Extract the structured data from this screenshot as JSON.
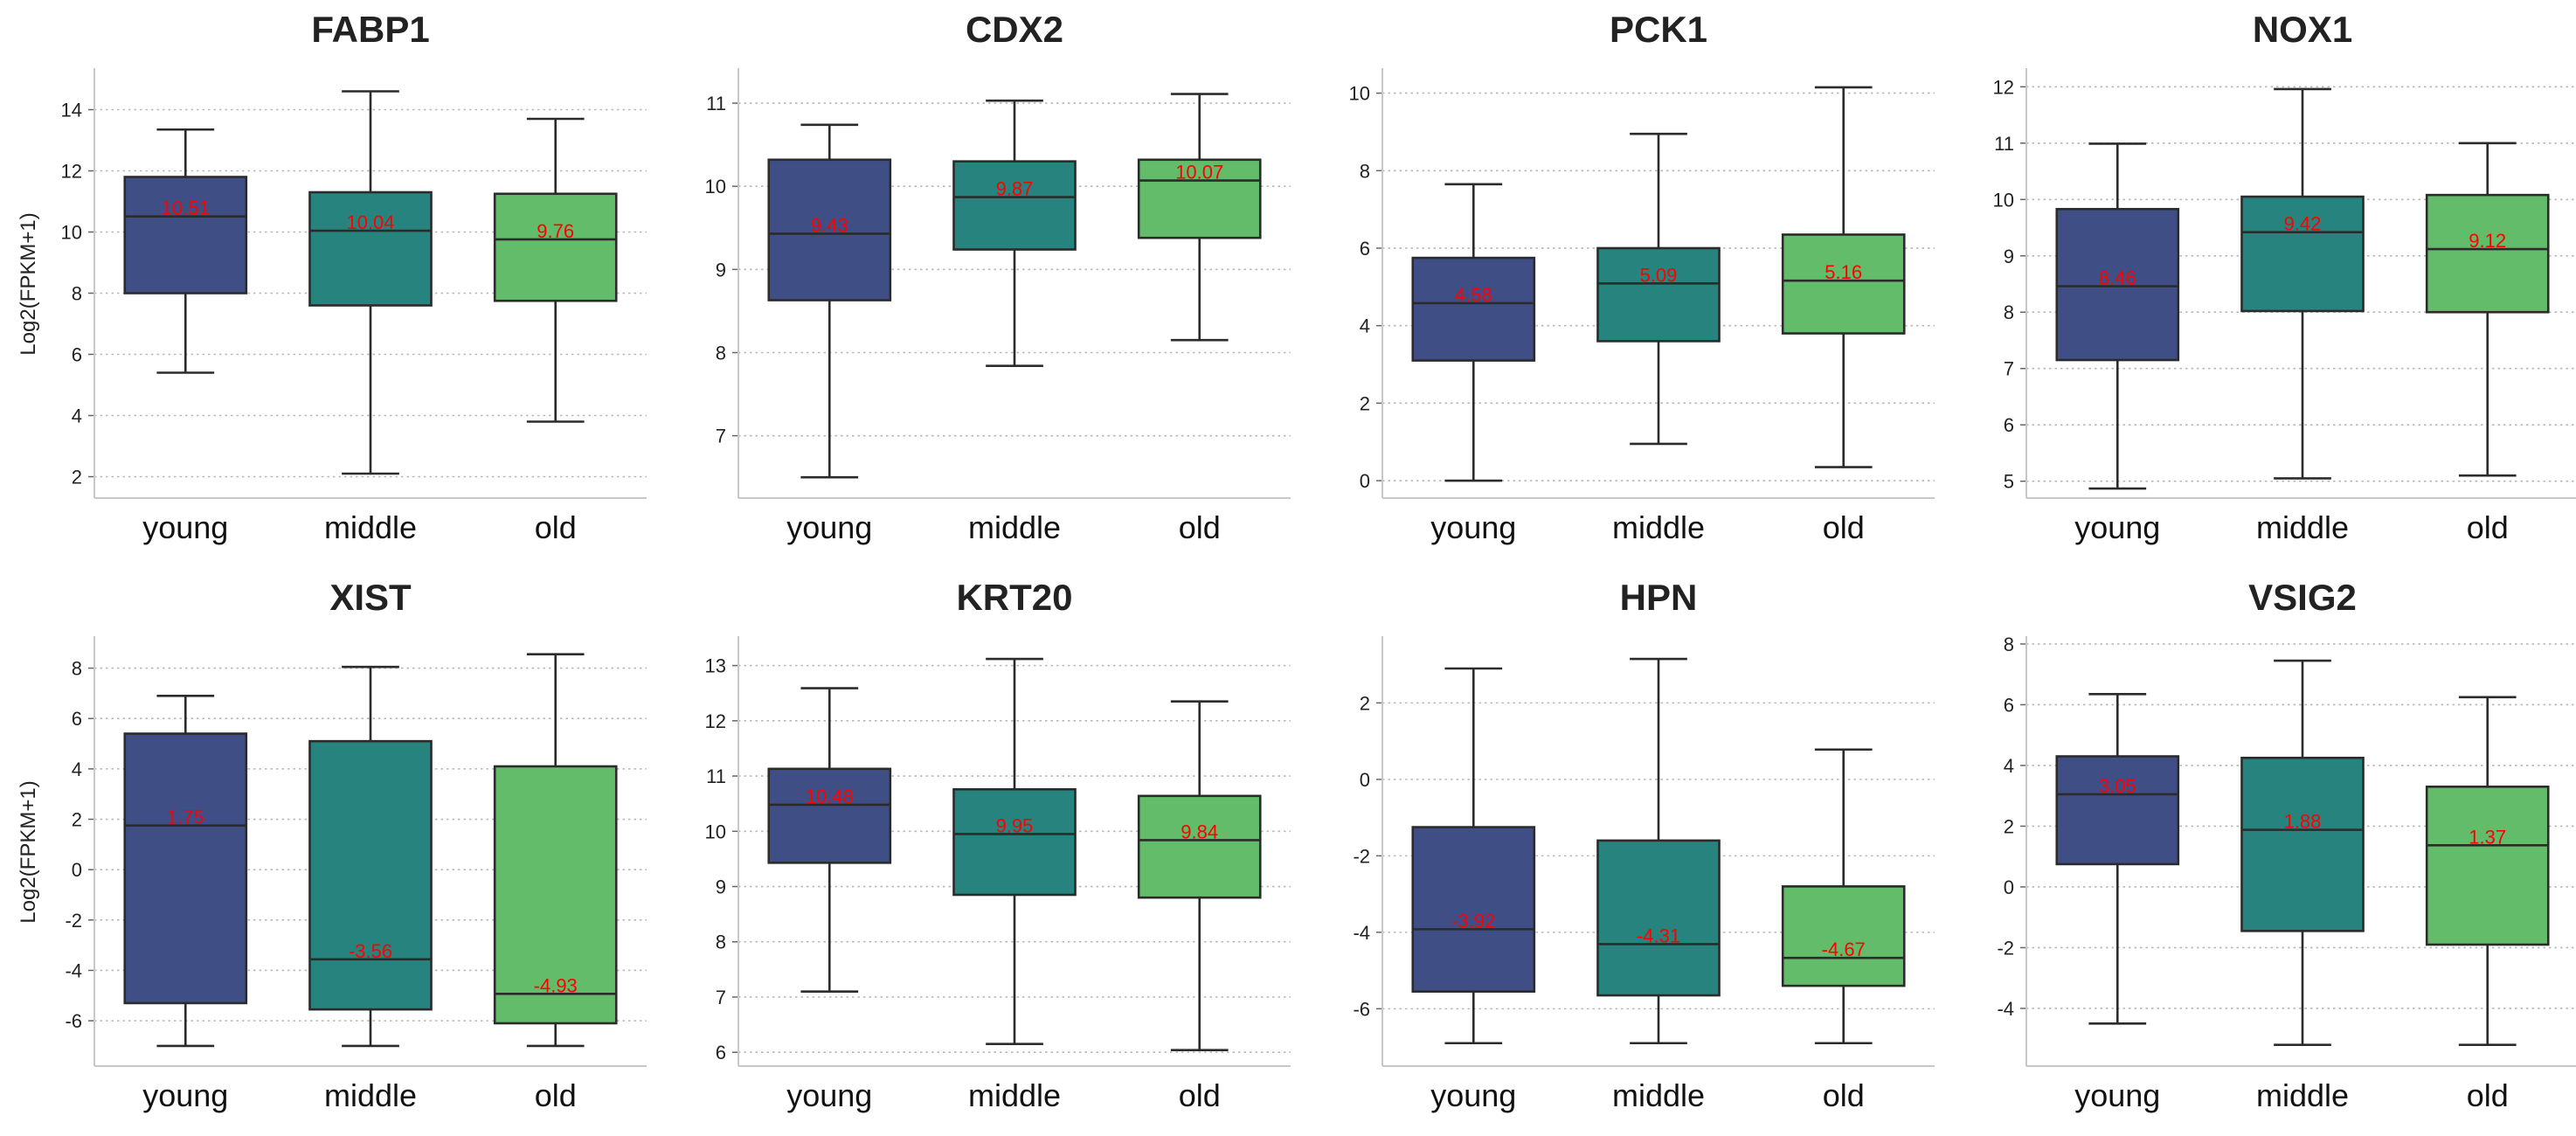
{
  "chart_data": [
    {
      "type": "box",
      "title": "FABP1",
      "ylabel": "Log2(FPKM+1)",
      "categories": [
        "young",
        "middle",
        "old"
      ],
      "ylim": [
        1.3,
        15.3
      ],
      "yticks": [
        2,
        4,
        6,
        8,
        10,
        12,
        14
      ],
      "boxes": [
        {
          "whisker_low": 5.4,
          "q1": 8.0,
          "median": 10.51,
          "q3": 11.8,
          "whisker_high": 13.35,
          "label": "10.51"
        },
        {
          "whisker_low": 2.1,
          "q1": 7.6,
          "median": 10.04,
          "q3": 11.3,
          "whisker_high": 14.6,
          "label": "10.04"
        },
        {
          "whisker_low": 3.8,
          "q1": 7.75,
          "median": 9.76,
          "q3": 11.25,
          "whisker_high": 13.7,
          "label": "9.76"
        }
      ]
    },
    {
      "type": "box",
      "title": "CDX2",
      "ylabel": "",
      "categories": [
        "young",
        "middle",
        "old"
      ],
      "ylim": [
        6.25,
        11.4
      ],
      "yticks": [
        7,
        8,
        9,
        10,
        11
      ],
      "boxes": [
        {
          "whisker_low": 6.5,
          "q1": 8.63,
          "median": 9.43,
          "q3": 10.32,
          "whisker_high": 10.74,
          "label": "9.43"
        },
        {
          "whisker_low": 7.84,
          "q1": 9.24,
          "median": 9.87,
          "q3": 10.3,
          "whisker_high": 11.03,
          "label": "9.87"
        },
        {
          "whisker_low": 8.15,
          "q1": 9.38,
          "median": 10.07,
          "q3": 10.32,
          "whisker_high": 11.11,
          "label": "10.07"
        }
      ]
    },
    {
      "type": "box",
      "title": "PCK1",
      "ylabel": "",
      "categories": [
        "young",
        "middle",
        "old"
      ],
      "ylim": [
        -0.45,
        10.6
      ],
      "yticks": [
        0,
        2,
        4,
        6,
        8,
        10
      ],
      "boxes": [
        {
          "whisker_low": 0.0,
          "q1": 3.1,
          "median": 4.58,
          "q3": 5.75,
          "whisker_high": 7.65,
          "label": "4.58"
        },
        {
          "whisker_low": 0.95,
          "q1": 3.6,
          "median": 5.09,
          "q3": 6.0,
          "whisker_high": 8.95,
          "label": "5.09"
        },
        {
          "whisker_low": 0.35,
          "q1": 3.8,
          "median": 5.16,
          "q3": 6.35,
          "whisker_high": 10.15,
          "label": "5.16"
        }
      ]
    },
    {
      "type": "box",
      "title": "NOX1",
      "ylabel": "",
      "categories": [
        "young",
        "middle",
        "old"
      ],
      "ylim": [
        4.7,
        12.3
      ],
      "yticks": [
        5,
        6,
        7,
        8,
        9,
        10,
        11,
        12
      ],
      "boxes": [
        {
          "whisker_low": 4.87,
          "q1": 7.15,
          "median": 8.46,
          "q3": 9.83,
          "whisker_high": 10.99,
          "label": "8.46"
        },
        {
          "whisker_low": 5.05,
          "q1": 8.02,
          "median": 9.42,
          "q3": 10.05,
          "whisker_high": 11.96,
          "label": "9.42"
        },
        {
          "whisker_low": 5.1,
          "q1": 8.0,
          "median": 9.12,
          "q3": 10.08,
          "whisker_high": 11.0,
          "label": "9.12"
        }
      ]
    },
    {
      "type": "box",
      "title": "XIST",
      "ylabel": "Log2(FPKM+1)",
      "categories": [
        "young",
        "middle",
        "old"
      ],
      "ylim": [
        -7.8,
        9.2
      ],
      "yticks": [
        -6,
        -4,
        -2,
        0,
        2,
        4,
        6,
        8
      ],
      "boxes": [
        {
          "whisker_low": -7.0,
          "q1": -5.3,
          "median": 1.75,
          "q3": 5.4,
          "whisker_high": 6.9,
          "label": "1.75"
        },
        {
          "whisker_low": -7.0,
          "q1": -5.55,
          "median": -3.56,
          "q3": 5.1,
          "whisker_high": 8.05,
          "label": "-3.56"
        },
        {
          "whisker_low": -7.0,
          "q1": -6.1,
          "median": -4.93,
          "q3": 4.1,
          "whisker_high": 8.55,
          "label": "-4.93"
        }
      ]
    },
    {
      "type": "box",
      "title": "KRT20",
      "ylabel": "",
      "categories": [
        "young",
        "middle",
        "old"
      ],
      "ylim": [
        5.75,
        13.5
      ],
      "yticks": [
        6,
        7,
        8,
        9,
        10,
        11,
        12,
        13
      ],
      "boxes": [
        {
          "whisker_low": 7.1,
          "q1": 9.43,
          "median": 10.48,
          "q3": 11.13,
          "whisker_high": 12.59,
          "label": "10.48"
        },
        {
          "whisker_low": 6.15,
          "q1": 8.85,
          "median": 9.95,
          "q3": 10.76,
          "whisker_high": 13.12,
          "label": "9.95"
        },
        {
          "whisker_low": 6.04,
          "q1": 8.8,
          "median": 9.84,
          "q3": 10.64,
          "whisker_high": 12.35,
          "label": "9.84"
        }
      ]
    },
    {
      "type": "box",
      "title": "HPN",
      "ylabel": "",
      "categories": [
        "young",
        "middle",
        "old"
      ],
      "ylim": [
        -7.5,
        3.7
      ],
      "yticks": [
        -6,
        -4,
        -2,
        0,
        2
      ],
      "boxes": [
        {
          "whisker_low": -6.9,
          "q1": -5.55,
          "median": -3.92,
          "q3": -1.25,
          "whisker_high": 2.9,
          "label": "-3.92"
        },
        {
          "whisker_low": -6.9,
          "q1": -5.65,
          "median": -4.31,
          "q3": -1.6,
          "whisker_high": 3.15,
          "label": "-4.31"
        },
        {
          "whisker_low": -6.9,
          "q1": -5.4,
          "median": -4.67,
          "q3": -2.8,
          "whisker_high": 0.78,
          "label": "-4.67"
        }
      ]
    },
    {
      "type": "box",
      "title": "VSIG2",
      "ylabel": "",
      "categories": [
        "young",
        "middle",
        "old"
      ],
      "ylim": [
        -5.9,
        8.2
      ],
      "yticks": [
        -4,
        -2,
        0,
        2,
        4,
        6,
        8
      ],
      "boxes": [
        {
          "whisker_low": -4.5,
          "q1": 0.75,
          "median": 3.05,
          "q3": 4.3,
          "whisker_high": 6.35,
          "label": "3.05"
        },
        {
          "whisker_low": -5.2,
          "q1": -1.45,
          "median": 1.88,
          "q3": 4.25,
          "whisker_high": 7.45,
          "label": "1.88"
        },
        {
          "whisker_low": -5.2,
          "q1": -1.9,
          "median": 1.37,
          "q3": 3.3,
          "whisker_high": 6.25,
          "label": "1.37"
        }
      ]
    }
  ],
  "colors": {
    "young": "#3f4f86",
    "middle": "#26837d",
    "old": "#63bc6a",
    "median_label": "#ff0000",
    "box_edge": "#2b2b2b",
    "grid": "#b7b7b7",
    "axis": "#c8c8c8"
  }
}
